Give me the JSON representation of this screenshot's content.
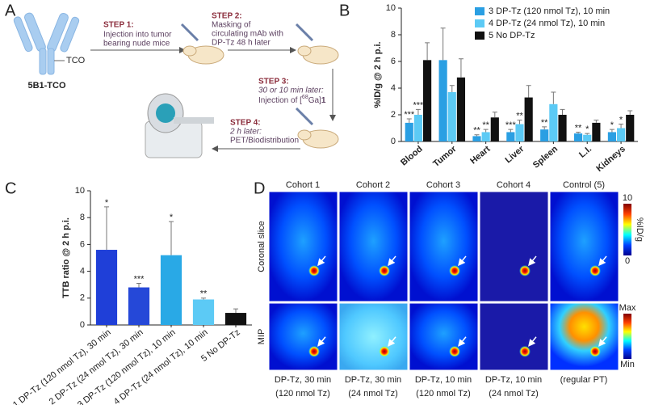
{
  "panel_labels": [
    "A",
    "B",
    "C",
    "D"
  ],
  "diagram": {
    "antibody": "5B1-TCO",
    "tco": "TCO",
    "steps": [
      {
        "title": "STEP 1:",
        "text": [
          "Injection into tumor",
          "bearing nude mice"
        ]
      },
      {
        "title": "STEP 2:",
        "text": [
          "Masking of",
          "circulating mAb with",
          "DP-Tz 48 h later"
        ]
      },
      {
        "title": "STEP 3:",
        "lead": "30 or 10 min later:",
        "text_pre": "Injection of [",
        "sup": "68",
        "text_post": "Ga]",
        "bold": "1"
      },
      {
        "title": "STEP 4:",
        "lead": "2 h later:",
        "text": [
          "PET/Biodistribution"
        ]
      }
    ]
  },
  "chart_data": [
    {
      "type": "bar",
      "ylabel": "%ID/g @ 2 h p.i.",
      "categories": [
        "Blood",
        "Tumor",
        "Heart",
        "Liver",
        "Spleen",
        "L.I.",
        "Kidneys"
      ],
      "series": [
        {
          "name": "3 DP-Tz (120 nmol Tz), 10 min",
          "color": "#2a9fe3",
          "values": [
            1.4,
            6.1,
            0.4,
            0.7,
            0.9,
            0.6,
            0.7
          ],
          "errors": [
            0.3,
            2.4,
            0.1,
            0.2,
            0.2,
            0.1,
            0.2
          ],
          "significance": [
            "***",
            null,
            "**",
            "***",
            "**",
            "**",
            "*"
          ]
        },
        {
          "name": "4 DP-Tz (24 nmol Tz), 10 min",
          "color": "#5ccaf5",
          "values": [
            2.0,
            3.7,
            0.7,
            1.3,
            2.8,
            0.5,
            1.0
          ],
          "errors": [
            0.4,
            0.5,
            0.2,
            0.3,
            0.9,
            0.1,
            0.3
          ],
          "significance": [
            "***",
            null,
            "**",
            "**",
            null,
            "*",
            "*"
          ]
        },
        {
          "name": "5 No DP-Tz",
          "color": "#111111",
          "values": [
            6.1,
            4.8,
            1.8,
            3.3,
            2.0,
            1.4,
            2.0
          ],
          "errors": [
            1.3,
            1.4,
            0.4,
            0.9,
            0.4,
            0.2,
            0.3
          ],
          "significance": [
            null,
            null,
            null,
            null,
            null,
            null,
            null
          ]
        }
      ],
      "ylim": [
        0,
        10
      ],
      "yticks": [
        0,
        2,
        4,
        6,
        8,
        10
      ]
    },
    {
      "type": "bar",
      "ylabel": "TTB ratio @ 2 h p.i.",
      "categories": [
        "1 DP-Tz (120 nmol Tz), 30 min",
        "2 DP-Tz (24 nmol Tz), 30 min",
        "3 DP-Tz (120 nmol Tz), 10 min",
        "4 DP-Tz (24 nmol Tz), 10 min",
        "5 No DP-Tz"
      ],
      "values": [
        5.6,
        2.8,
        5.2,
        1.9,
        0.9
      ],
      "errors": [
        3.2,
        0.3,
        2.5,
        0.1,
        0.3
      ],
      "significance": [
        "*",
        "***",
        "*",
        "**",
        null
      ],
      "colors": [
        "#1f3fd8",
        "#2548d8",
        "#29a9e6",
        "#5ccaf5",
        "#111111"
      ],
      "ylim": [
        0,
        10
      ],
      "yticks": [
        0,
        2,
        4,
        6,
        8,
        10
      ]
    }
  ],
  "images": {
    "columns": [
      "Cohort 1",
      "Cohort 2",
      "Cohort 3",
      "Cohort 4",
      "Control (5)"
    ],
    "rows": [
      "Coronal slice",
      "MIP"
    ],
    "captions": [
      [
        "DP-Tz, 30 min",
        "(120 nmol Tz)"
      ],
      [
        "DP-Tz, 30 min",
        "(24 nmol Tz)"
      ],
      [
        "DP-Tz, 10 min",
        "(120 nmol Tz)"
      ],
      [
        "DP-Tz, 10 min",
        "(24 nmol Tz)"
      ],
      [
        "(regular PT)"
      ]
    ],
    "colorbars": [
      {
        "top": "10",
        "unit": "%ID/g",
        "bottom": "0"
      },
      {
        "top": "Max",
        "bottom": "Min"
      }
    ]
  }
}
